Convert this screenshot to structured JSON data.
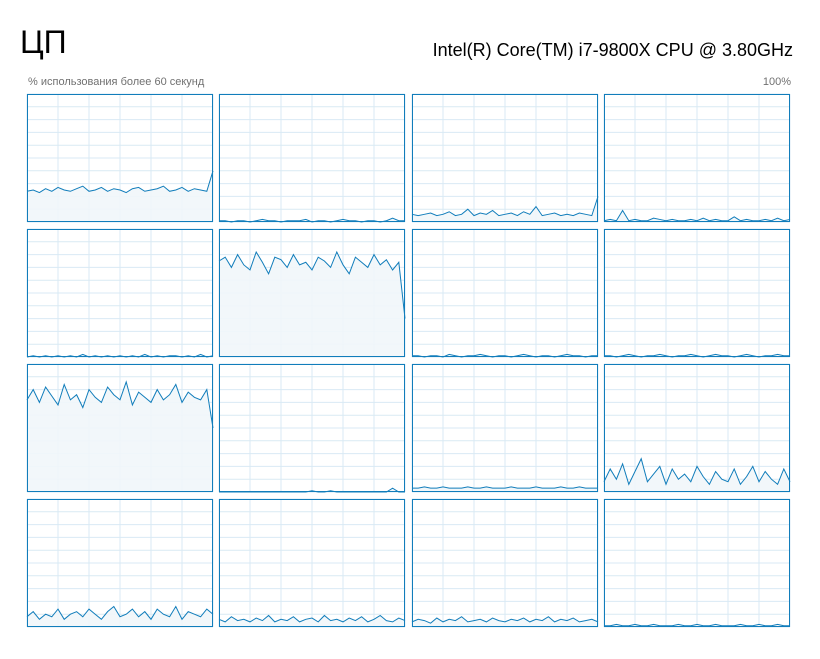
{
  "header": {
    "title": "ЦП",
    "cpu_name": "Intel(R) Core(TM) i7-9800X CPU @ 3.80GHz",
    "subtitle": "% использования более 60 секунд",
    "max_label": "100%"
  },
  "graphs": {
    "x": [
      0,
      2,
      4,
      6,
      8,
      10,
      12,
      14,
      16,
      18,
      20,
      22,
      24,
      26,
      28,
      30,
      32,
      34,
      36,
      38,
      40,
      42,
      44,
      46,
      48,
      50,
      52,
      54,
      56,
      58,
      60
    ],
    "xlim": [
      0,
      60
    ],
    "ylim": [
      0,
      100
    ],
    "xticks": [
      0,
      10,
      20,
      30,
      40,
      50,
      60
    ],
    "yticks": [
      0,
      10,
      20,
      30,
      40,
      50,
      60,
      70,
      80,
      90,
      100
    ],
    "line_color": "#117dbb",
    "fill_color": "#f1f6fa",
    "grid_color": "#d9eaf4",
    "cores": [
      {
        "values": [
          24,
          25,
          23,
          26,
          24,
          27,
          25,
          24,
          26,
          28,
          24,
          25,
          27,
          24,
          26,
          25,
          23,
          26,
          27,
          24,
          25,
          26,
          28,
          24,
          25,
          27,
          24,
          26,
          25,
          24,
          40
        ]
      },
      {
        "values": [
          1,
          1,
          0,
          1,
          1,
          0,
          1,
          2,
          1,
          1,
          0,
          1,
          1,
          1,
          2,
          0,
          1,
          1,
          0,
          1,
          2,
          1,
          1,
          0,
          1,
          1,
          0,
          1,
          3,
          1,
          1
        ]
      },
      {
        "values": [
          6,
          5,
          6,
          7,
          5,
          6,
          8,
          5,
          6,
          10,
          5,
          7,
          6,
          9,
          5,
          6,
          7,
          5,
          8,
          6,
          12,
          5,
          6,
          7,
          5,
          6,
          5,
          7,
          6,
          5,
          20
        ]
      },
      {
        "values": [
          1,
          2,
          1,
          9,
          1,
          2,
          1,
          1,
          3,
          2,
          1,
          2,
          1,
          1,
          2,
          1,
          3,
          1,
          2,
          1,
          1,
          4,
          1,
          2,
          1,
          1,
          2,
          1,
          3,
          1,
          2
        ]
      },
      {
        "values": [
          0,
          1,
          0,
          1,
          0,
          1,
          0,
          1,
          0,
          2,
          0,
          1,
          0,
          1,
          0,
          1,
          0,
          1,
          0,
          2,
          0,
          1,
          0,
          1,
          1,
          0,
          1,
          0,
          2,
          0,
          1
        ]
      },
      {
        "values": [
          75,
          78,
          70,
          80,
          72,
          68,
          82,
          74,
          65,
          78,
          76,
          70,
          80,
          72,
          74,
          68,
          78,
          75,
          70,
          82,
          72,
          65,
          78,
          74,
          70,
          80,
          72,
          76,
          68,
          74,
          30
        ]
      },
      {
        "values": [
          1,
          1,
          0,
          1,
          1,
          0,
          2,
          1,
          0,
          1,
          1,
          2,
          1,
          0,
          1,
          1,
          0,
          1,
          2,
          1,
          0,
          1,
          1,
          0,
          1,
          2,
          1,
          1,
          0,
          1,
          1
        ]
      },
      {
        "values": [
          1,
          1,
          0,
          1,
          2,
          1,
          0,
          1,
          1,
          2,
          1,
          0,
          1,
          1,
          2,
          1,
          0,
          1,
          2,
          1,
          1,
          0,
          1,
          2,
          1,
          0,
          1,
          1,
          2,
          1,
          1
        ]
      },
      {
        "values": [
          72,
          80,
          70,
          82,
          75,
          68,
          84,
          72,
          76,
          66,
          80,
          74,
          70,
          82,
          76,
          72,
          86,
          68,
          78,
          74,
          70,
          80,
          72,
          76,
          84,
          70,
          78,
          74,
          72,
          80,
          50
        ]
      },
      {
        "values": [
          0,
          0,
          0,
          0,
          0,
          0,
          0,
          0,
          0,
          0,
          0,
          0,
          0,
          0,
          0,
          1,
          0,
          0,
          1,
          0,
          0,
          0,
          0,
          0,
          0,
          0,
          0,
          0,
          3,
          0,
          0
        ]
      },
      {
        "values": [
          3,
          3,
          4,
          3,
          3,
          4,
          3,
          3,
          3,
          4,
          3,
          3,
          4,
          3,
          3,
          3,
          4,
          3,
          3,
          3,
          4,
          3,
          3,
          3,
          4,
          3,
          3,
          4,
          3,
          3,
          3
        ]
      },
      {
        "values": [
          8,
          18,
          10,
          22,
          6,
          16,
          26,
          8,
          14,
          20,
          6,
          18,
          10,
          14,
          8,
          20,
          12,
          6,
          16,
          10,
          8,
          18,
          6,
          12,
          20,
          8,
          16,
          10,
          6,
          18,
          8
        ]
      },
      {
        "values": [
          8,
          12,
          6,
          10,
          8,
          14,
          6,
          10,
          12,
          8,
          14,
          10,
          6,
          12,
          16,
          8,
          10,
          14,
          8,
          12,
          6,
          14,
          10,
          8,
          16,
          6,
          12,
          10,
          8,
          14,
          10
        ]
      },
      {
        "values": [
          6,
          4,
          8,
          5,
          6,
          4,
          7,
          5,
          9,
          4,
          6,
          5,
          8,
          4,
          6,
          7,
          4,
          9,
          5,
          6,
          4,
          7,
          5,
          8,
          4,
          6,
          9,
          5,
          4,
          7,
          5
        ]
      },
      {
        "values": [
          4,
          6,
          5,
          3,
          7,
          4,
          6,
          5,
          8,
          4,
          5,
          6,
          4,
          7,
          5,
          4,
          6,
          5,
          7,
          4,
          6,
          5,
          8,
          4,
          6,
          5,
          7,
          4,
          5,
          6,
          4
        ]
      },
      {
        "values": [
          1,
          1,
          2,
          1,
          1,
          2,
          1,
          1,
          2,
          1,
          1,
          1,
          2,
          1,
          1,
          2,
          1,
          1,
          2,
          1,
          1,
          1,
          2,
          1,
          1,
          2,
          1,
          1,
          2,
          1,
          1
        ]
      }
    ]
  }
}
